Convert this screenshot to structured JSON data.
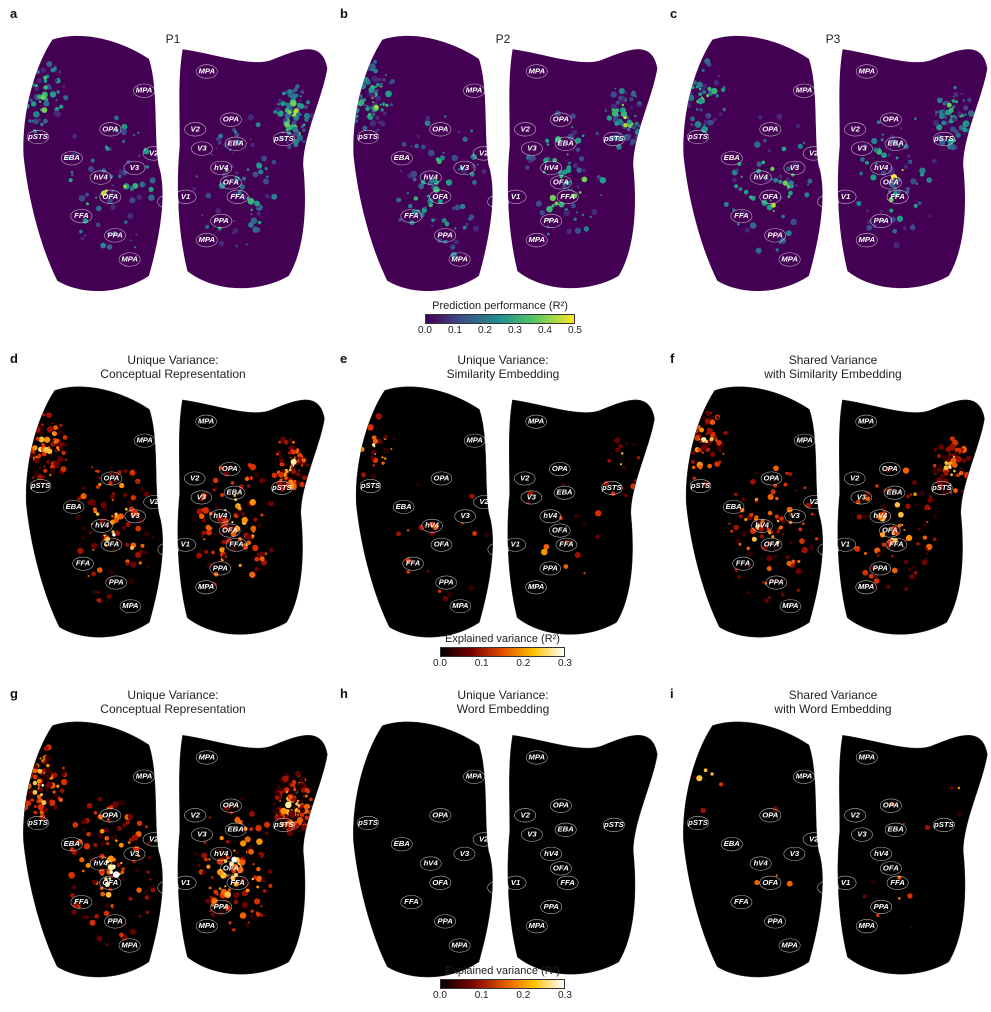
{
  "panels": [
    {
      "letter": "a",
      "title": "P1",
      "palette": "viridis",
      "density": 0.55
    },
    {
      "letter": "b",
      "title": "P2",
      "palette": "viridis",
      "density": 0.55
    },
    {
      "letter": "c",
      "title": "P3",
      "palette": "viridis",
      "density": 0.5
    },
    {
      "letter": "d",
      "title": "Unique Variance:\nConceptual Representation",
      "palette": "hot",
      "density": 0.75
    },
    {
      "letter": "e",
      "title": "Unique Variance:\nSimilarity Embedding",
      "palette": "hot",
      "density": 0.15
    },
    {
      "letter": "f",
      "title": "Shared Variance\nwith Similarity Embedding",
      "palette": "hot",
      "density": 0.65
    },
    {
      "letter": "g",
      "title": "Unique Variance:\nConceptual Representation",
      "palette": "hot",
      "density": 0.95
    },
    {
      "letter": "h",
      "title": "Unique Variance:\nWord Embedding",
      "palette": "hot",
      "density": 0.0
    },
    {
      "letter": "i",
      "title": "Shared Variance\nwith Word Embedding",
      "palette": "hot",
      "density": 0.05
    }
  ],
  "roi_labels": [
    "MPA",
    "OPA",
    "EBA",
    "pSTS",
    "V1",
    "V2",
    "V3",
    "hV4",
    "OFA",
    "FFA",
    "PPA",
    "MPA"
  ],
  "colorbars": [
    {
      "label": "Prediction performance (R²)",
      "ticks": [
        "0.0",
        "0.1",
        "0.2",
        "0.3",
        "0.4",
        "0.5"
      ],
      "colors": [
        "#440154",
        "#3b528b",
        "#21918c",
        "#5ec962",
        "#fde725"
      ]
    },
    {
      "label": "Explained variance (R²)",
      "ticks": [
        "0.0",
        "0.1",
        "0.2",
        "0.3"
      ],
      "colors": [
        "#000000",
        "#7a0000",
        "#e05000",
        "#ffc000",
        "#ffffff"
      ]
    },
    {
      "label": "Explained variance (R²)",
      "ticks": [
        "0.0",
        "0.1",
        "0.2",
        "0.3"
      ],
      "colors": [
        "#000000",
        "#7a0000",
        "#e05000",
        "#ffc000",
        "#ffffff"
      ]
    }
  ]
}
